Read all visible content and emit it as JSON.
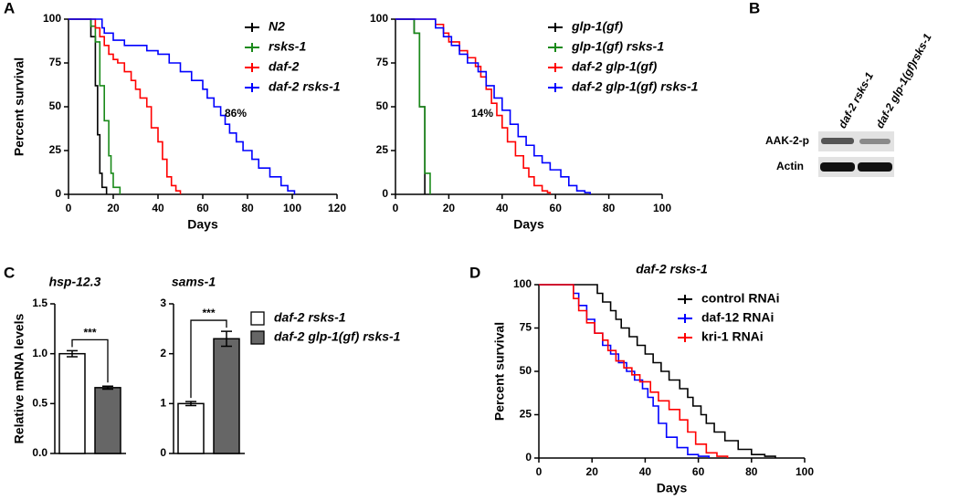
{
  "panel_labels": [
    "A",
    "B",
    "C",
    "D"
  ],
  "chart_data": [
    {
      "type": "line",
      "drawstyle": "steps-post",
      "ylabel": "Percent survival",
      "xlabel": "Days",
      "annotation": "86%",
      "xlim": [
        0,
        120
      ],
      "xticks": [
        0,
        20,
        40,
        60,
        80,
        100,
        120
      ],
      "ylim": [
        0,
        100
      ],
      "yticks": [
        0,
        25,
        50,
        75,
        100
      ],
      "series": [
        {
          "name": "N2",
          "color": "#000000",
          "x": [
            0,
            10,
            12,
            13,
            14,
            15,
            17
          ],
          "values": [
            100,
            90,
            62,
            34,
            12,
            4,
            0
          ]
        },
        {
          "name": "rsks-1",
          "color": "#1a8a1a",
          "x": [
            0,
            10,
            12,
            14,
            16,
            18,
            19,
            20,
            23
          ],
          "values": [
            100,
            96,
            87,
            62,
            42,
            22,
            12,
            4,
            0
          ]
        },
        {
          "name": "daf-2",
          "color": "#ff0000",
          "x": [
            0,
            12,
            14,
            16,
            18,
            20,
            22,
            25,
            28,
            30,
            32,
            35,
            37,
            40,
            42,
            44,
            46,
            48,
            50
          ],
          "values": [
            100,
            95,
            90,
            85,
            80,
            77,
            75,
            70,
            65,
            60,
            55,
            50,
            38,
            30,
            20,
            10,
            5,
            2,
            0
          ]
        },
        {
          "name": "daf-2 rsks-1",
          "color": "#0000ff",
          "x": [
            0,
            15,
            16,
            20,
            25,
            35,
            40,
            45,
            50,
            55,
            60,
            62,
            65,
            68,
            70,
            72,
            75,
            78,
            82,
            85,
            90,
            95,
            98,
            101
          ],
          "values": [
            100,
            95,
            92,
            88,
            85,
            82,
            80,
            75,
            70,
            65,
            60,
            55,
            50,
            45,
            40,
            35,
            30,
            25,
            20,
            15,
            10,
            5,
            2,
            0
          ]
        }
      ]
    },
    {
      "type": "line",
      "drawstyle": "steps-post",
      "xlabel": "Days",
      "annotation": "14%",
      "xlim": [
        0,
        100
      ],
      "xticks": [
        0,
        20,
        40,
        60,
        80,
        100
      ],
      "ylim": [
        0,
        100
      ],
      "yticks": [
        0,
        25,
        50,
        75,
        100
      ],
      "series": [
        {
          "name": "glp-1(gf)",
          "color": "#000000",
          "x": [
            0,
            7,
            9,
            11
          ],
          "values": [
            100,
            92,
            50,
            0
          ]
        },
        {
          "name": "glp-1(gf) rsks-1",
          "color": "#1a8a1a",
          "x": [
            0,
            7,
            9,
            11,
            13
          ],
          "values": [
            100,
            92,
            50,
            12,
            0
          ]
        },
        {
          "name": "daf-2 glp-1(gf)",
          "color": "#ff0000",
          "x": [
            0,
            15,
            18,
            20,
            24,
            27,
            30,
            32,
            34,
            36,
            38,
            40,
            42,
            45,
            48,
            50,
            52,
            55,
            57,
            58
          ],
          "values": [
            100,
            97,
            92,
            87,
            82,
            78,
            73,
            67,
            60,
            52,
            45,
            38,
            30,
            22,
            15,
            10,
            5,
            2,
            1,
            0
          ]
        },
        {
          "name": "daf-2 glp-1(gf) rsks-1",
          "color": "#0000ff",
          "x": [
            0,
            15,
            18,
            21,
            24,
            27,
            31,
            34,
            37,
            40,
            43,
            46,
            49,
            52,
            55,
            58,
            62,
            65,
            68,
            71,
            73
          ],
          "values": [
            100,
            95,
            90,
            85,
            80,
            75,
            70,
            62,
            55,
            48,
            40,
            33,
            28,
            22,
            18,
            14,
            10,
            5,
            2,
            1,
            0
          ]
        }
      ]
    },
    {
      "type": "bar",
      "ylabel": "Relative mRNA levels",
      "series": [
        {
          "name": "daf-2 rsks-1",
          "color": "#ffffff"
        },
        {
          "name": "daf-2 glp-1(gf) rsks-1",
          "color": "#666666"
        }
      ],
      "panels": [
        {
          "title": "hsp-12.3",
          "ylim": [
            0,
            1.5
          ],
          "yticks": [
            {
              "value": 0,
              "label": "0.0"
            },
            0.5,
            {
              "value": 1,
              "label": "1.0"
            },
            1.5
          ],
          "values": [
            1.0,
            0.66
          ],
          "errors": [
            0.03,
            0.015
          ],
          "significance": "***"
        },
        {
          "title": "sams-1",
          "ylim": [
            0,
            3
          ],
          "yticks": [
            0,
            1,
            2,
            3
          ],
          "values": [
            1.0,
            2.3
          ],
          "errors": [
            0.04,
            0.15
          ],
          "significance": "***"
        }
      ]
    },
    {
      "type": "line",
      "drawstyle": "steps-post",
      "title": "daf-2 rsks-1",
      "ylabel": "Percent survival",
      "xlabel": "Days",
      "xlim": [
        0,
        100
      ],
      "xticks": [
        0,
        20,
        40,
        60,
        80,
        100
      ],
      "ylim": [
        0,
        100
      ],
      "yticks": [
        0,
        25,
        50,
        75,
        100
      ],
      "series": [
        {
          "name": "control RNAi",
          "color": "#000000",
          "x": [
            0,
            22,
            24,
            27,
            29,
            31,
            34,
            37,
            40,
            43,
            46,
            49,
            53,
            56,
            58,
            61,
            63,
            66,
            70,
            75,
            80,
            85,
            89
          ],
          "values": [
            100,
            95,
            90,
            85,
            80,
            75,
            70,
            65,
            60,
            55,
            50,
            45,
            40,
            35,
            30,
            25,
            20,
            15,
            10,
            5,
            2,
            1,
            0
          ]
        },
        {
          "name": "daf-12 RNAi",
          "color": "#0000ff",
          "x": [
            0,
            13,
            15,
            18,
            21,
            24,
            27,
            30,
            33,
            36,
            39,
            41,
            43,
            45,
            48,
            52,
            56,
            60,
            64
          ],
          "values": [
            100,
            95,
            88,
            80,
            72,
            65,
            60,
            55,
            50,
            45,
            40,
            35,
            30,
            20,
            12,
            6,
            2,
            1,
            0
          ]
        },
        {
          "name": "kri-1 RNAi",
          "color": "#ff0000",
          "x": [
            0,
            13,
            15,
            18,
            21,
            24,
            26,
            29,
            32,
            35,
            38,
            42,
            45,
            49,
            53,
            56,
            59,
            63,
            67,
            71
          ],
          "values": [
            100,
            92,
            85,
            78,
            72,
            68,
            62,
            56,
            52,
            48,
            44,
            38,
            33,
            28,
            22,
            15,
            8,
            3,
            1,
            0
          ]
        }
      ]
    }
  ],
  "blot": {
    "columns": [
      "daf-2 rsks-1",
      "daf-2 glp-1(gf)rsks-1"
    ],
    "rows": [
      "AAK-2-p",
      "Actin"
    ]
  }
}
